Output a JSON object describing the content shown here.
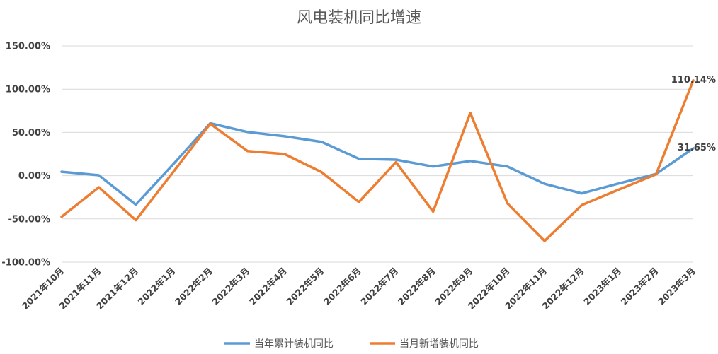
{
  "chart_data": {
    "type": "line",
    "title": "风电装机同比增速",
    "categories": [
      "2021年10月",
      "2021年11月",
      "2021年12月",
      "2022年1月",
      "2022年2月",
      "2022年3月",
      "2022年4月",
      "2022年5月",
      "2022年6月",
      "2022年7月",
      "2022年8月",
      "2022年9月",
      "2022年10月",
      "2022年11月",
      "2022年12月",
      "2023年1月",
      "2023年2月",
      "2023年3月"
    ],
    "series": [
      {
        "name": "当年累计装机同比",
        "color": "#5b9bd5",
        "values": [
          4.5,
          0.5,
          -33.5,
          13.0,
          60.5,
          50.5,
          45.5,
          39.0,
          19.5,
          18.5,
          10.5,
          17.0,
          10.5,
          -9.5,
          -20.5,
          -9.0,
          2.0,
          31.65
        ],
        "end_label": "31.65%"
      },
      {
        "name": "当月新增装机同比",
        "color": "#ed7d31",
        "values": [
          -47.5,
          -13.5,
          -51.5,
          4.0,
          60.0,
          28.5,
          25.0,
          4.0,
          -30.5,
          15.5,
          -41.5,
          72.5,
          -32.0,
          -75.5,
          -34.0,
          -16.0,
          1.5,
          110.14
        ],
        "end_label": "110.14%"
      }
    ],
    "ylim": [
      -100,
      150
    ],
    "yticks": [
      150,
      100,
      50,
      0,
      -50,
      -100
    ],
    "ytick_labels": [
      "150.00%",
      "100.00%",
      "50.00%",
      "0.00%",
      "-50.00%",
      "-100.00%"
    ],
    "grid": true,
    "legend_position": "bottom"
  }
}
